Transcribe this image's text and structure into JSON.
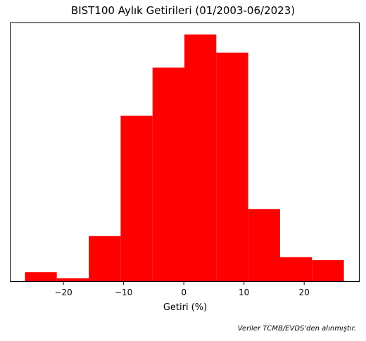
{
  "chart_data": {
    "type": "bar",
    "title": "BIST100 Aylık Getirileri (01/2003-06/2023)",
    "xlabel": "Getiri (%)",
    "ylabel": "",
    "bin_edges": [
      -26.4,
      -21.1,
      -15.8,
      -10.5,
      -5.2,
      0.1,
      5.4,
      10.7,
      16.0,
      21.3,
      26.6
    ],
    "counts": [
      3,
      1,
      15,
      55,
      71,
      82,
      76,
      24,
      8,
      7
    ],
    "xlim": [
      -28.9,
      29.1
    ],
    "ylim": [
      0,
      86
    ],
    "xticks": [
      -20,
      -10,
      0,
      10,
      20
    ],
    "xtick_labels": [
      "−20",
      "−10",
      "0",
      "10",
      "20"
    ],
    "yaxis_ticks_visible": false,
    "grid": false,
    "color": "#ff0000"
  },
  "footnote": "Veriler TCMB/EVDS'den alınmıştır."
}
